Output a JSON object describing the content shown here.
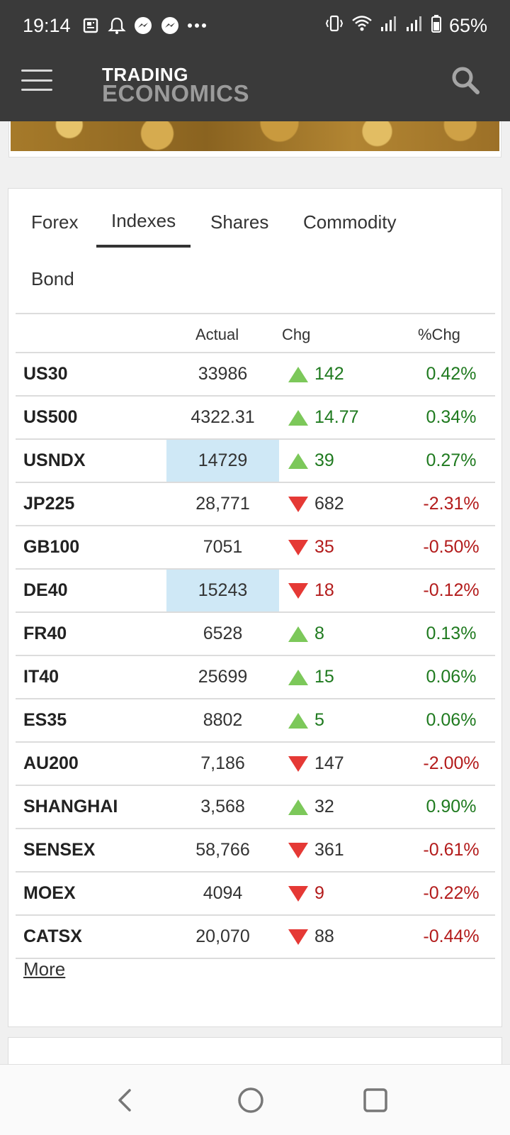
{
  "status_bar": {
    "time": "19:14",
    "battery": "65%",
    "left_icons": [
      "news-icon",
      "notification-bell-icon",
      "messenger-icon",
      "messenger-icon",
      "more-dots-icon"
    ],
    "right_icons": [
      "vibrate-icon",
      "wifi-icon",
      "signal-icon",
      "signal-icon",
      "battery-icon"
    ]
  },
  "header": {
    "logo_top": "TRADING",
    "logo_bottom": "ECONOMICS",
    "menu_icon": "hamburger-menu-icon",
    "search_icon": "search-icon"
  },
  "tabs": [
    {
      "label": "Forex",
      "active": false
    },
    {
      "label": "Indexes",
      "active": true
    },
    {
      "label": "Shares",
      "active": false
    },
    {
      "label": "Commodity",
      "active": false
    },
    {
      "label": "Bond",
      "active": false
    }
  ],
  "table": {
    "columns": [
      "",
      "Actual",
      "Chg",
      "%Chg"
    ],
    "rows": [
      {
        "name": "US30",
        "actual": "33986",
        "chg": "142",
        "pct": "0.42%",
        "dir": "up",
        "highlight": false
      },
      {
        "name": "US500",
        "actual": "4322.31",
        "chg": "14.77",
        "pct": "0.34%",
        "dir": "up",
        "highlight": false
      },
      {
        "name": "USNDX",
        "actual": "14729",
        "chg": "39",
        "pct": "0.27%",
        "dir": "up",
        "highlight": true
      },
      {
        "name": "JP225",
        "actual": "28,771",
        "chg": "682",
        "pct": "-2.31%",
        "dir": "down",
        "chg_plain": true,
        "highlight": false
      },
      {
        "name": "GB100",
        "actual": "7051",
        "chg": "35",
        "pct": "-0.50%",
        "dir": "down",
        "highlight": false
      },
      {
        "name": "DE40",
        "actual": "15243",
        "chg": "18",
        "pct": "-0.12%",
        "dir": "down",
        "highlight": true
      },
      {
        "name": "FR40",
        "actual": "6528",
        "chg": "8",
        "pct": "0.13%",
        "dir": "up",
        "highlight": false
      },
      {
        "name": "IT40",
        "actual": "25699",
        "chg": "15",
        "pct": "0.06%",
        "dir": "up",
        "highlight": false
      },
      {
        "name": "ES35",
        "actual": "8802",
        "chg": "5",
        "pct": "0.06%",
        "dir": "up",
        "highlight": false
      },
      {
        "name": "AU200",
        "actual": "7,186",
        "chg": "147",
        "pct": "-2.00%",
        "dir": "down",
        "chg_plain": true,
        "highlight": false
      },
      {
        "name": "SHANGHAI",
        "actual": "3,568",
        "chg": "32",
        "pct": "0.90%",
        "dir": "up",
        "chg_plain": true,
        "highlight": false
      },
      {
        "name": "SENSEX",
        "actual": "58,766",
        "chg": "361",
        "pct": "-0.61%",
        "dir": "down",
        "chg_plain": true,
        "highlight": false
      },
      {
        "name": "MOEX",
        "actual": "4094",
        "chg": "9",
        "pct": "-0.22%",
        "dir": "down",
        "highlight": false
      },
      {
        "name": "CATSX",
        "actual": "20,070",
        "chg": "88",
        "pct": "-0.44%",
        "dir": "down",
        "chg_plain": true,
        "highlight": false
      }
    ]
  },
  "more_link": "More",
  "colors": {
    "up": "#1f7a1f",
    "down": "#b31b1b",
    "up_triangle": "#7cc85a",
    "down_triangle": "#e53935",
    "highlight": "#cfe8f6",
    "header_bg": "#3a3a3a"
  },
  "navbar": {
    "buttons": [
      "back-icon",
      "home-icon",
      "recents-icon"
    ]
  }
}
